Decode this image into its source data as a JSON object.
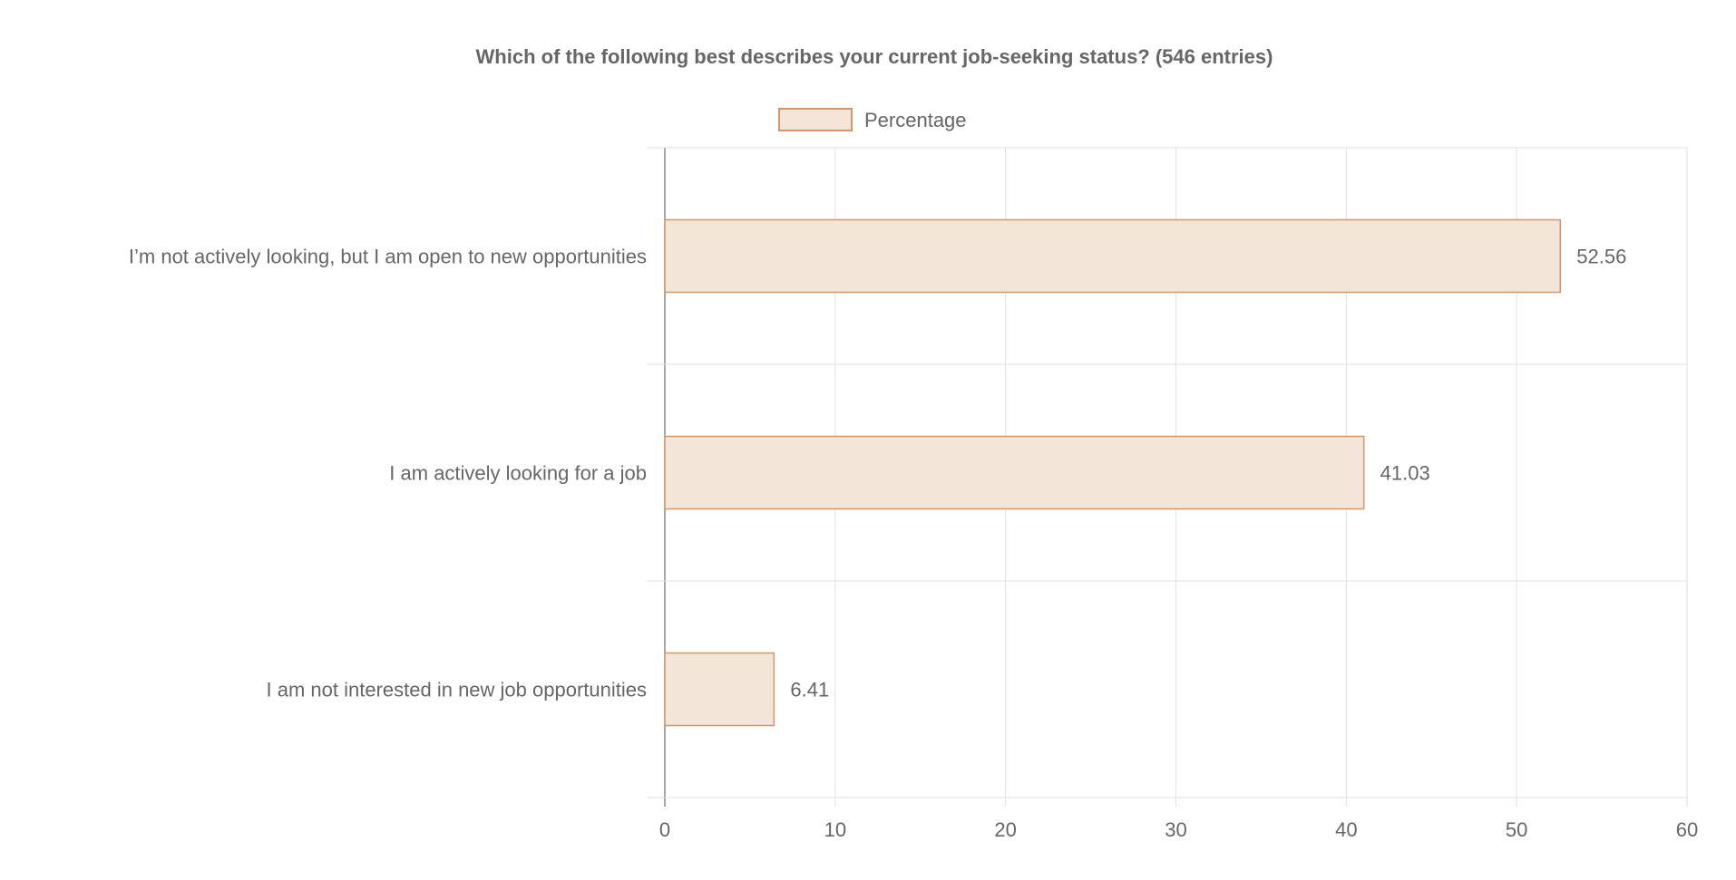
{
  "chart_data": {
    "type": "bar",
    "orientation": "horizontal",
    "title": "Which of the following best describes your current job-seeking status? (546 entries)",
    "legend_position": "top",
    "grid": true,
    "categories": [
      "I’m not actively looking, but I am open to new opportunities",
      "I am actively looking for a job",
      "I am not interested in new job opportunities"
    ],
    "series": [
      {
        "name": "Percentage",
        "values": [
          52.56,
          41.03,
          6.41
        ],
        "fill_color": "#f4e5d9",
        "border_color": "#d4976a"
      }
    ],
    "data_labels": [
      "52.56",
      "41.03",
      "6.41"
    ],
    "xlim": [
      0,
      60
    ],
    "x_ticks": [
      0,
      10,
      20,
      30,
      40,
      50,
      60
    ],
    "xlabel": "",
    "ylabel": ""
  },
  "colors": {
    "text": "#666666",
    "title": "#666666",
    "grid": "#e1e1e1",
    "axis": "#8a8a8a"
  }
}
